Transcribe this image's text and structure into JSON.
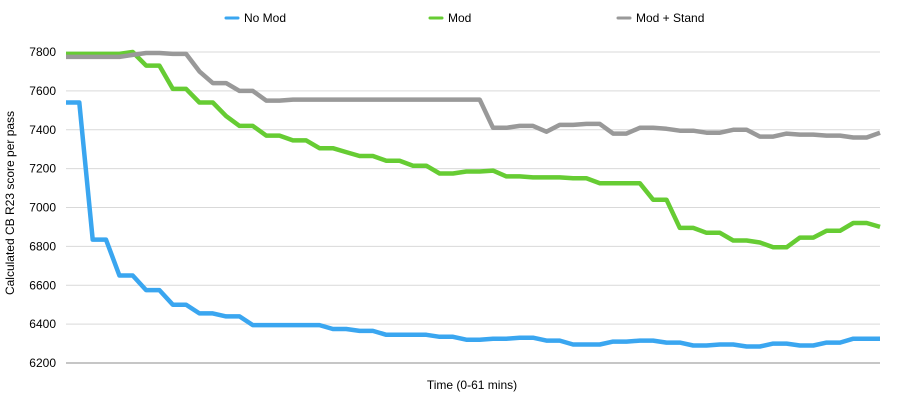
{
  "chart_data": {
    "type": "line",
    "xlabel": "Time (0-61 mins)",
    "ylabel": "Calculated CB R23 score per pass",
    "ylim": [
      6200,
      7800
    ],
    "yticks": [
      6200,
      6400,
      6600,
      6800,
      7000,
      7200,
      7400,
      7600,
      7800
    ],
    "grid": true,
    "legend_position": "top",
    "x": [
      0,
      1,
      2,
      3,
      4,
      5,
      6,
      7,
      8,
      9,
      10,
      11,
      12,
      13,
      14,
      15,
      16,
      17,
      18,
      19,
      20,
      21,
      22,
      23,
      24,
      25,
      26,
      27,
      28,
      29,
      30,
      31,
      32,
      33,
      34,
      35,
      36,
      37,
      38,
      39,
      40,
      41,
      42,
      43,
      44,
      45,
      46,
      47,
      48,
      49,
      50,
      51,
      52,
      53,
      54,
      55,
      56,
      57,
      58,
      59,
      60,
      61
    ],
    "series": [
      {
        "name": "No Mod",
        "color": "#3aa6f0",
        "values": [
          7540,
          7540,
          6835,
          6835,
          6650,
          6650,
          6575,
          6575,
          6500,
          6500,
          6455,
          6455,
          6440,
          6440,
          6395,
          6395,
          6395,
          6395,
          6395,
          6395,
          6375,
          6375,
          6365,
          6365,
          6345,
          6345,
          6345,
          6345,
          6335,
          6335,
          6320,
          6320,
          6325,
          6325,
          6330,
          6330,
          6315,
          6315,
          6295,
          6295,
          6295,
          6310,
          6310,
          6315,
          6315,
          6305,
          6305,
          6290,
          6290,
          6295,
          6295,
          6285,
          6285,
          6300,
          6300,
          6290,
          6290,
          6305,
          6305,
          6325,
          6325,
          6325
        ]
      },
      {
        "name": "Mod",
        "color": "#66cc33",
        "values": [
          7790,
          7790,
          7790,
          7790,
          7790,
          7800,
          7730,
          7730,
          7610,
          7610,
          7540,
          7540,
          7470,
          7420,
          7420,
          7370,
          7370,
          7345,
          7345,
          7305,
          7305,
          7285,
          7265,
          7265,
          7240,
          7240,
          7215,
          7215,
          7175,
          7175,
          7185,
          7185,
          7190,
          7160,
          7160,
          7155,
          7155,
          7155,
          7150,
          7150,
          7125,
          7125,
          7125,
          7125,
          7040,
          7040,
          6895,
          6895,
          6870,
          6870,
          6830,
          6830,
          6820,
          6795,
          6795,
          6845,
          6845,
          6880,
          6880,
          6920,
          6920,
          6900
        ]
      },
      {
        "name": "Mod + Stand",
        "color": "#999999",
        "values": [
          7775,
          7775,
          7775,
          7775,
          7775,
          7785,
          7795,
          7795,
          7790,
          7790,
          7700,
          7640,
          7640,
          7600,
          7600,
          7550,
          7550,
          7555,
          7555,
          7555,
          7555,
          7555,
          7555,
          7555,
          7555,
          7555,
          7555,
          7555,
          7555,
          7555,
          7555,
          7555,
          7410,
          7410,
          7420,
          7420,
          7390,
          7425,
          7425,
          7430,
          7430,
          7380,
          7380,
          7410,
          7410,
          7405,
          7395,
          7395,
          7385,
          7385,
          7400,
          7400,
          7365,
          7365,
          7380,
          7375,
          7375,
          7370,
          7370,
          7360,
          7360,
          7385
        ]
      }
    ]
  }
}
